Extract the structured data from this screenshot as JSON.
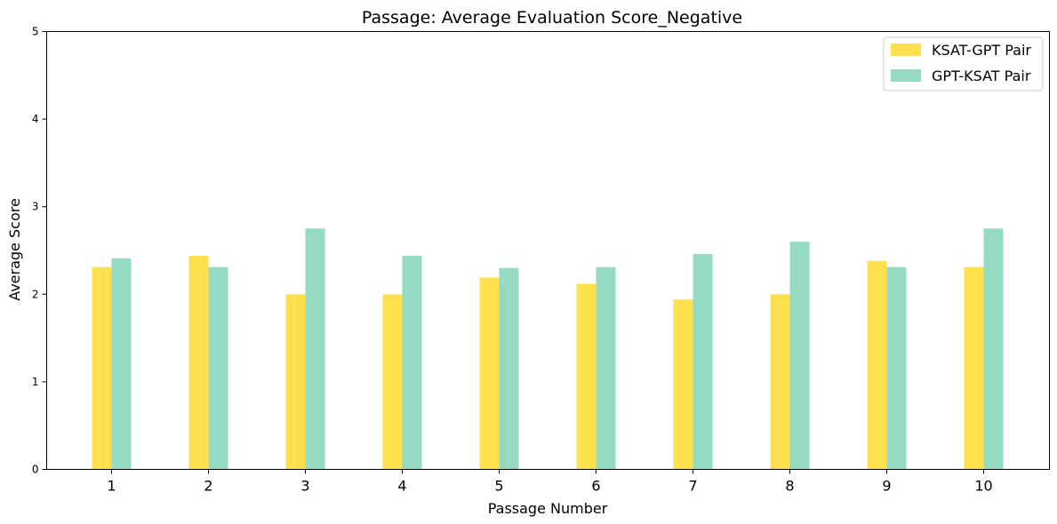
{
  "chart_data": {
    "type": "bar",
    "title": "Passage: Average Evaluation Score_Negative",
    "xlabel": "Passage Number",
    "ylabel": "Average Score",
    "categories": [
      "1",
      "2",
      "3",
      "4",
      "5",
      "6",
      "7",
      "8",
      "9",
      "10"
    ],
    "ylim": [
      0,
      5
    ],
    "yticks": [
      "0",
      "1",
      "2",
      "3",
      "4",
      "5"
    ],
    "grid": false,
    "legend_position": "top-right",
    "series": [
      {
        "name": "KSAT-GPT Pair",
        "color": "#ffe14f",
        "values": [
          2.31,
          2.44,
          2.0,
          2.0,
          2.19,
          2.12,
          1.94,
          2.0,
          2.38,
          2.31
        ]
      },
      {
        "name": "GPT-KSAT Pair",
        "color": "#95dbc1",
        "values": [
          2.41,
          2.31,
          2.75,
          2.44,
          2.3,
          2.31,
          2.46,
          2.6,
          2.31,
          2.75
        ]
      }
    ]
  }
}
